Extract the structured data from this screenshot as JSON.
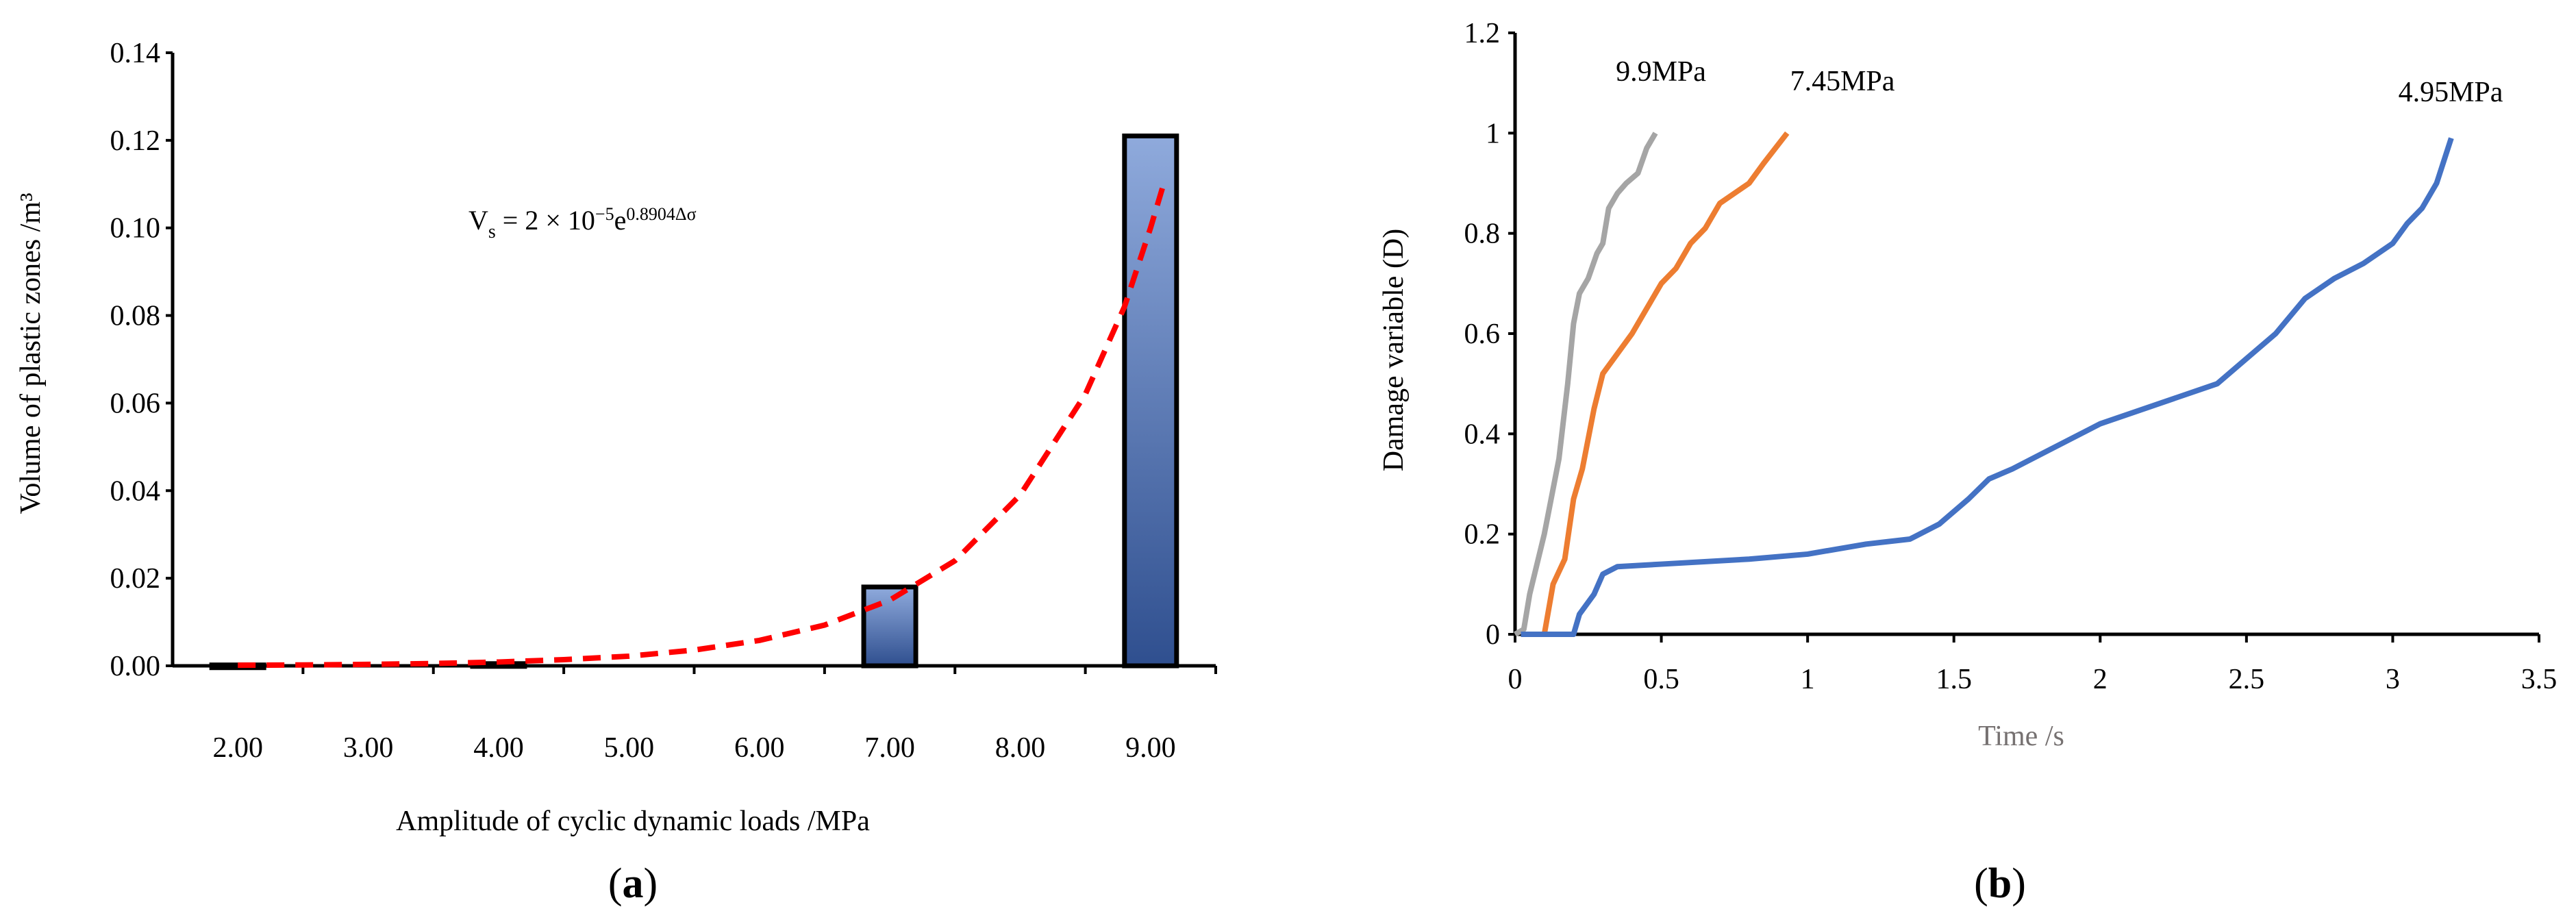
{
  "chart_data": [
    {
      "type": "bar",
      "panel_label": "a",
      "xlabel": "Amplitude of cyclic dynamic loads /MPa",
      "ylabel": "Volume of plastic zones /m³",
      "categories": [
        "2.00",
        "3.00",
        "4.00",
        "5.00",
        "6.00",
        "7.00",
        "8.00",
        "9.00"
      ],
      "values": [
        0.0002,
        0,
        0.0005,
        0,
        0,
        0.018,
        0,
        0.121
      ],
      "ylim": [
        0,
        0.14
      ],
      "yticks": [
        "0.00",
        "0.02",
        "0.04",
        "0.06",
        "0.08",
        "0.10",
        "0.12",
        "0.14"
      ],
      "bar_gradient": [
        "#8faadc",
        "#2f4f8f"
      ],
      "fit_equation": {
        "lhs": "V",
        "sub": "s",
        "rhs": " = 2 × 10",
        "exp1": "−5",
        "e": "e",
        "exp2": "0.8904Δσ"
      },
      "fit_curve": {
        "color": "#ff0000",
        "x": [
          2,
          2.5,
          3,
          3.5,
          4,
          4.5,
          5,
          5.5,
          6,
          6.5,
          7,
          7.5,
          8,
          8.5,
          8.8,
          9,
          9.1
        ],
        "y": [
          0.00013,
          0.0002,
          0.00033,
          0.00053,
          0.00087,
          0.0014,
          0.0022,
          0.0036,
          0.0058,
          0.0093,
          0.015,
          0.024,
          0.039,
          0.062,
          0.082,
          0.1,
          0.11
        ]
      },
      "grid": false
    },
    {
      "type": "line",
      "panel_label": "b",
      "xlabel": "Time /s",
      "ylabel": "Damage variable (D)",
      "xlim": [
        0,
        3.5
      ],
      "ylim": [
        0,
        1.2
      ],
      "xticks": [
        "0",
        "0.5",
        "1",
        "1.5",
        "2",
        "2.5",
        "3",
        "3.5"
      ],
      "yticks": [
        "0",
        "0.2",
        "0.4",
        "0.6",
        "0.8",
        "1",
        "1.2"
      ],
      "series": [
        {
          "name": "9.9MPa",
          "color": "#a5a5a5",
          "x": [
            0,
            0.03,
            0.05,
            0.1,
            0.15,
            0.18,
            0.2,
            0.22,
            0.25,
            0.28,
            0.3,
            0.32,
            0.35,
            0.38,
            0.42,
            0.45,
            0.48
          ],
          "y": [
            0,
            0.01,
            0.08,
            0.2,
            0.35,
            0.5,
            0.62,
            0.68,
            0.71,
            0.76,
            0.78,
            0.85,
            0.88,
            0.9,
            0.92,
            0.97,
            1.0
          ]
        },
        {
          "name": "7.45MPa",
          "color": "#ed7d31",
          "x": [
            0.02,
            0.1,
            0.13,
            0.17,
            0.2,
            0.23,
            0.27,
            0.3,
            0.35,
            0.4,
            0.45,
            0.5,
            0.55,
            0.6,
            0.65,
            0.7,
            0.8,
            0.85,
            0.93
          ],
          "y": [
            0,
            0,
            0.1,
            0.15,
            0.27,
            0.33,
            0.45,
            0.52,
            0.56,
            0.6,
            0.65,
            0.7,
            0.73,
            0.78,
            0.81,
            0.86,
            0.9,
            0.94,
            1.0
          ]
        },
        {
          "name": "4.95MPa",
          "color": "#4472c4",
          "x": [
            0.02,
            0.2,
            0.22,
            0.27,
            0.3,
            0.35,
            0.5,
            0.8,
            1.0,
            1.2,
            1.35,
            1.45,
            1.55,
            1.62,
            1.7,
            1.8,
            2.0,
            2.2,
            2.4,
            2.5,
            2.6,
            2.7,
            2.8,
            2.9,
            3.0,
            3.05,
            3.1,
            3.15,
            3.2
          ],
          "y": [
            0,
            0,
            0.04,
            0.08,
            0.12,
            0.135,
            0.14,
            0.15,
            0.16,
            0.18,
            0.19,
            0.22,
            0.27,
            0.31,
            0.33,
            0.36,
            0.42,
            0.46,
            0.5,
            0.55,
            0.6,
            0.67,
            0.71,
            0.74,
            0.78,
            0.82,
            0.85,
            0.9,
            0.99
          ]
        }
      ],
      "grid": false
    }
  ]
}
